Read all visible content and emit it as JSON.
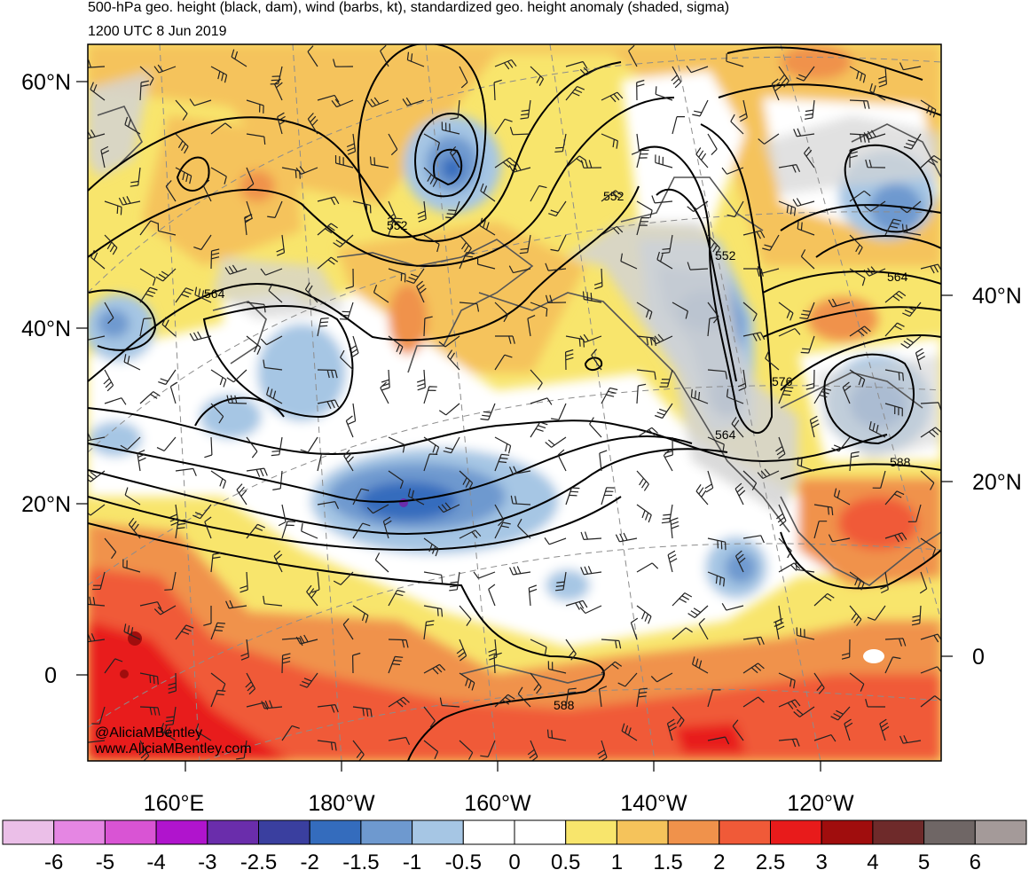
{
  "header": {
    "title": "500-hPa geo. height (black, dam), wind (barbs, kt), standardized geo. height anomaly (shaded, sigma)",
    "subtitle": "1200 UTC 8 Jun 2019"
  },
  "map": {
    "projection": "north-polar-stereographic",
    "left_latitude_labels": [
      "60°N",
      "40°N",
      "20°N",
      "0"
    ],
    "right_latitude_labels": [
      "40°N",
      "20°N",
      "0"
    ],
    "longitude_labels": [
      "160°E",
      "180°W",
      "160°W",
      "140°W",
      "120°W"
    ],
    "contour_labels": [
      "552",
      "564",
      "552",
      "552",
      "564",
      "576",
      "564",
      "588",
      "588"
    ],
    "credit_line_1": "@AliciaMBentley",
    "credit_line_2": "www.AliciaMBentley.com"
  },
  "colorbar": {
    "labels": [
      "-6",
      "-5",
      "-4",
      "-3",
      "-2.5",
      "-2",
      "-1.5",
      "-1",
      "-0.5",
      "0",
      "0.5",
      "1",
      "1.5",
      "2",
      "2.5",
      "3",
      "4",
      "5",
      "6"
    ],
    "colors": [
      "#ebbfe8",
      "#e586e3",
      "#d954d4",
      "#b014cd",
      "#6a2dab",
      "#3a3f9f",
      "#346cbd",
      "#6e99cf",
      "#a6c6e4",
      "#ffffff",
      "#ffffff",
      "#f8e56c",
      "#f5c35b",
      "#f0924b",
      "#f05a38",
      "#e81b1b",
      "#a00d0d",
      "#6e2a2a",
      "#6f6665",
      "#a49a99"
    ]
  },
  "anomaly_colors": {
    "strong_negative": "#3a3f9f",
    "negative": "#346cbd",
    "weak_negative": "#6e99cf",
    "slight_negative": "#a6c6e4",
    "slight_positive": "#f8e56c",
    "weak_positive": "#f5c35b",
    "positive": "#f0924b",
    "strong_positive": "#f05a38",
    "very_strong_positive": "#e81b1b",
    "extreme_positive": "#a00d0d",
    "land_gray": "#d4d4d4"
  }
}
